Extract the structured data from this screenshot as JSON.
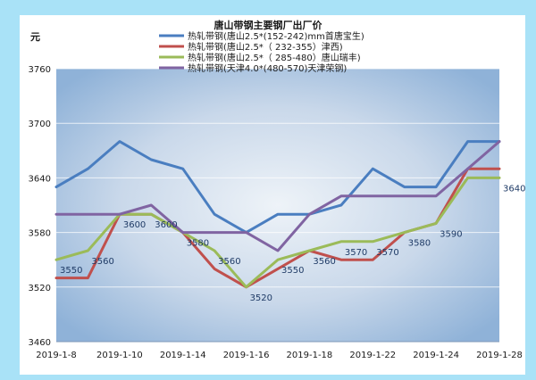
{
  "chart_data": {
    "type": "line",
    "title": "唐山带钢主要钢厂出厂价",
    "ylabel": "元",
    "xlabel": "",
    "ylim": [
      3460,
      3760
    ],
    "yticks": [
      3460,
      3520,
      3580,
      3640,
      3700,
      3760
    ],
    "grid": true,
    "legend_position": "top",
    "x": [
      "2019-1-8",
      "2019-1-9",
      "2019-1-10",
      "2019-1-11",
      "2019-1-14",
      "2019-1-15",
      "2019-1-16",
      "2019-1-17",
      "2019-1-18",
      "2019-1-21",
      "2019-1-22",
      "2019-1-23",
      "2019-1-24",
      "2019-1-25",
      "2019-1-28"
    ],
    "xtick_labels": [
      "2019-1-8",
      "2019-1-10",
      "2019-1-14",
      "2019-1-16",
      "2019-1-18",
      "2019-1-22",
      "2019-1-24",
      "2019-1-28"
    ],
    "series": [
      {
        "name": "热轧带钢(唐山2.5*(152-242)mm首唐宝生)",
        "color": "#4a7ec0",
        "values": [
          3630,
          3650,
          3680,
          3660,
          3650,
          3600,
          3580,
          3600,
          3600,
          3610,
          3650,
          3630,
          3630,
          3680,
          3680
        ]
      },
      {
        "name": "热轧带钢(唐山2.5*（ 232-355）津西)",
        "color": "#c0504d",
        "values": [
          3530,
          3530,
          3600,
          3600,
          3580,
          3540,
          3520,
          3540,
          3560,
          3550,
          3550,
          3580,
          3590,
          3650,
          3650
        ]
      },
      {
        "name": "热轧带钢(唐山2.5*（ 285-480）唐山瑞丰)",
        "color": "#9bbb59",
        "values": [
          3550,
          3560,
          3600,
          3600,
          3580,
          3560,
          3520,
          3550,
          3560,
          3570,
          3570,
          3580,
          3590,
          3640,
          3640
        ]
      },
      {
        "name": "热轧带钢(天津4.0*(480-570)天津荣钢)",
        "color": "#8064a2",
        "values": [
          3600,
          3600,
          3600,
          3610,
          3580,
          3580,
          3580,
          3560,
          3600,
          3620,
          3620,
          3620,
          3620,
          3650,
          3680
        ]
      }
    ],
    "data_labels": [
      {
        "index": 0,
        "value": 3550
      },
      {
        "index": 1,
        "value": 3560
      },
      {
        "index": 2,
        "value": 3600
      },
      {
        "index": 3,
        "value": 3600
      },
      {
        "index": 4,
        "value": 3580
      },
      {
        "index": 5,
        "value": 3560
      },
      {
        "index": 6,
        "value": 3520
      },
      {
        "index": 7,
        "value": 3550
      },
      {
        "index": 8,
        "value": 3560
      },
      {
        "index": 9,
        "value": 3570
      },
      {
        "index": 10,
        "value": 3570
      },
      {
        "index": 11,
        "value": 3580
      },
      {
        "index": 12,
        "value": 3590
      },
      {
        "index": 14,
        "value": 3640
      }
    ]
  }
}
